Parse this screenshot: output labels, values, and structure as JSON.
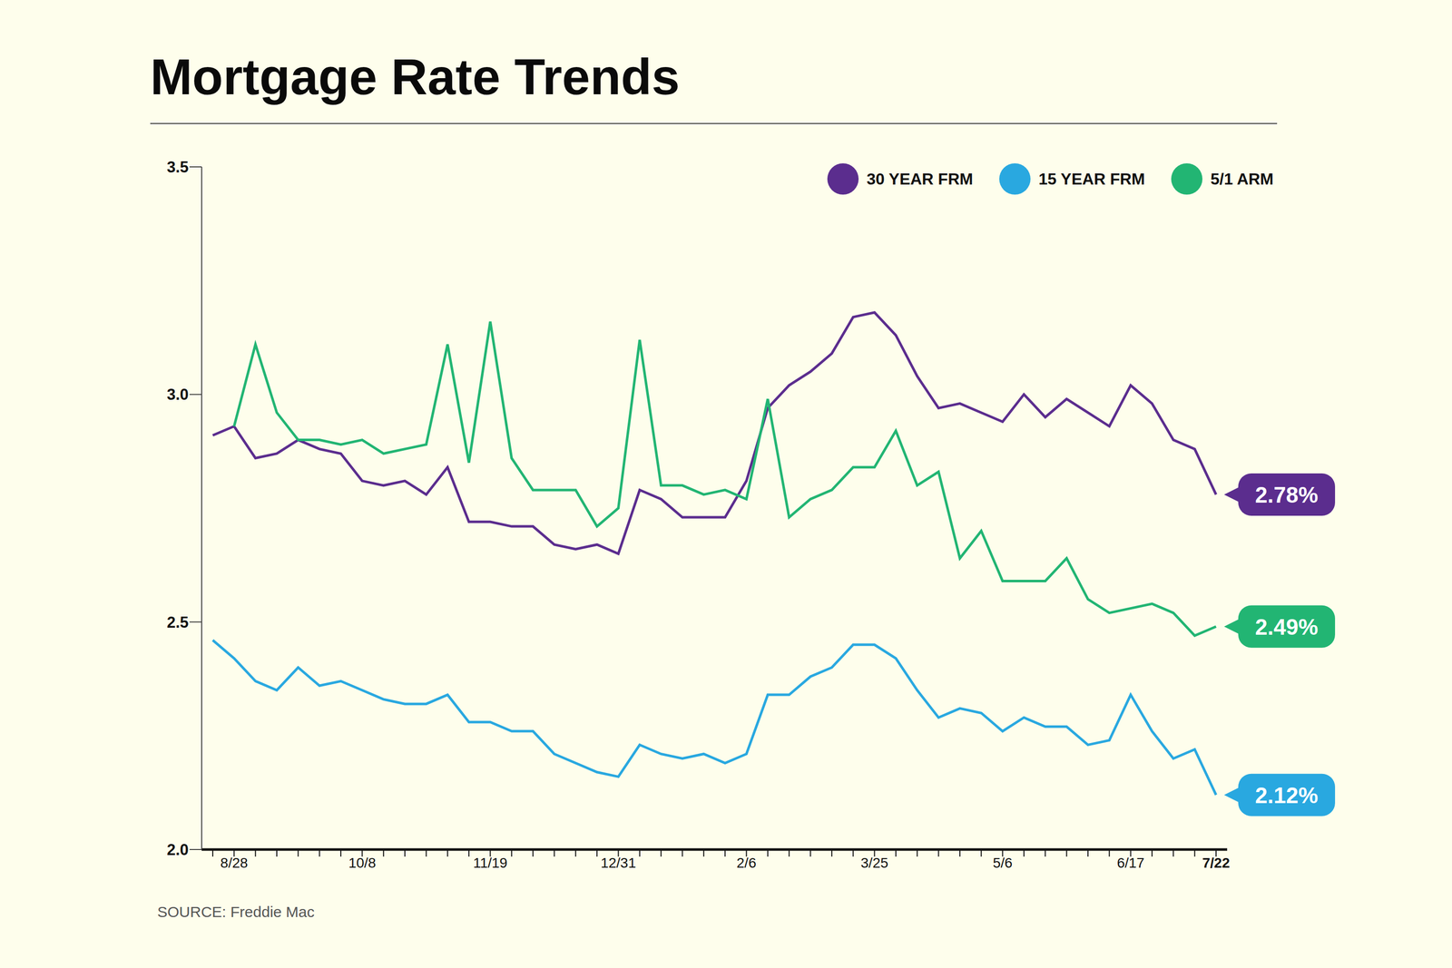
{
  "chart_data": {
    "type": "line",
    "title": "Mortgage Rate Trends",
    "source": "SOURCE: Freddie Mac",
    "legend": "upper right",
    "grid": false,
    "categories": [
      null,
      "8/28",
      null,
      null,
      null,
      null,
      null,
      "10/8",
      null,
      null,
      null,
      null,
      null,
      "11/19",
      null,
      null,
      null,
      null,
      null,
      "12/31",
      null,
      null,
      null,
      null,
      null,
      "2/6",
      null,
      null,
      null,
      null,
      null,
      "3/25",
      null,
      null,
      null,
      null,
      null,
      "5/6",
      null,
      null,
      null,
      null,
      null,
      "6/17",
      null,
      null,
      null,
      "7/22"
    ],
    "ylim": [
      2.0,
      3.5
    ],
    "yticks": [
      {
        "value": 2,
        "label": "2.0"
      },
      2.5,
      {
        "value": 3,
        "label": "3.0"
      },
      3.5
    ],
    "series": [
      {
        "name": "30 YEAR FRM",
        "color": "#5b2d8e",
        "values": [
          2.91,
          2.93,
          2.86,
          2.87,
          2.9,
          2.88,
          2.87,
          2.81,
          2.8,
          2.81,
          2.78,
          2.84,
          2.72,
          2.72,
          2.71,
          2.71,
          2.67,
          2.66,
          2.67,
          2.65,
          2.79,
          2.77,
          2.73,
          2.73,
          2.73,
          2.81,
          2.97,
          3.02,
          3.05,
          3.09,
          3.17,
          3.18,
          3.13,
          3.04,
          2.97,
          2.98,
          2.96,
          2.94,
          3.0,
          2.95,
          2.99,
          2.96,
          2.93,
          3.02,
          2.98,
          2.9,
          2.88,
          2.78
        ],
        "value_labels": [
          null,
          null,
          null,
          null,
          null,
          null,
          null,
          null,
          null,
          null,
          null,
          null,
          null,
          null,
          null,
          null,
          null,
          null,
          null,
          null,
          null,
          null,
          null,
          null,
          null,
          null,
          null,
          null,
          null,
          null,
          null,
          null,
          null,
          null,
          null,
          null,
          null,
          null,
          null,
          null,
          null,
          null,
          null,
          null,
          null,
          null,
          null,
          "2.78%"
        ]
      },
      {
        "name": "15 YEAR FRM",
        "color": "#29a8e0",
        "values": [
          2.46,
          2.42,
          2.37,
          2.35,
          2.4,
          2.36,
          2.37,
          2.35,
          2.33,
          2.32,
          2.32,
          2.34,
          2.28,
          2.28,
          2.26,
          2.26,
          2.21,
          2.19,
          2.17,
          2.16,
          2.23,
          2.21,
          2.2,
          2.21,
          2.19,
          2.21,
          2.34,
          2.34,
          2.38,
          2.4,
          2.45,
          2.45,
          2.42,
          2.35,
          2.29,
          2.31,
          2.3,
          2.26,
          2.29,
          2.27,
          2.27,
          2.23,
          2.24,
          2.34,
          2.26,
          2.2,
          2.22,
          2.12
        ],
        "value_labels": [
          null,
          null,
          null,
          null,
          null,
          null,
          null,
          null,
          null,
          null,
          null,
          null,
          null,
          null,
          null,
          null,
          null,
          null,
          null,
          null,
          null,
          null,
          null,
          null,
          null,
          null,
          null,
          null,
          null,
          null,
          null,
          null,
          null,
          null,
          null,
          null,
          null,
          null,
          null,
          null,
          null,
          null,
          null,
          null,
          null,
          null,
          null,
          "2.12%"
        ]
      },
      {
        "name": "5/1 ARM",
        "color": "#22b573",
        "values": [
          null,
          2.93,
          3.11,
          2.96,
          2.9,
          2.9,
          2.89,
          2.9,
          2.87,
          2.88,
          2.89,
          3.11,
          2.85,
          3.16,
          2.86,
          2.79,
          2.79,
          2.79,
          2.71,
          2.75,
          3.12,
          2.8,
          2.8,
          2.78,
          2.79,
          2.77,
          2.99,
          2.73,
          2.77,
          2.79,
          2.84,
          2.84,
          2.92,
          2.8,
          2.83,
          2.64,
          2.7,
          2.59,
          2.59,
          2.59,
          2.64,
          2.55,
          2.52,
          2.53,
          2.54,
          2.52,
          2.47,
          2.49
        ],
        "value_labels": [
          null,
          null,
          null,
          null,
          null,
          null,
          null,
          null,
          null,
          null,
          null,
          null,
          null,
          null,
          null,
          null,
          null,
          null,
          null,
          null,
          null,
          null,
          null,
          null,
          null,
          null,
          null,
          null,
          null,
          null,
          null,
          null,
          null,
          null,
          null,
          null,
          null,
          null,
          null,
          null,
          null,
          null,
          null,
          null,
          null,
          null,
          null,
          "2.49%"
        ]
      }
    ]
  }
}
